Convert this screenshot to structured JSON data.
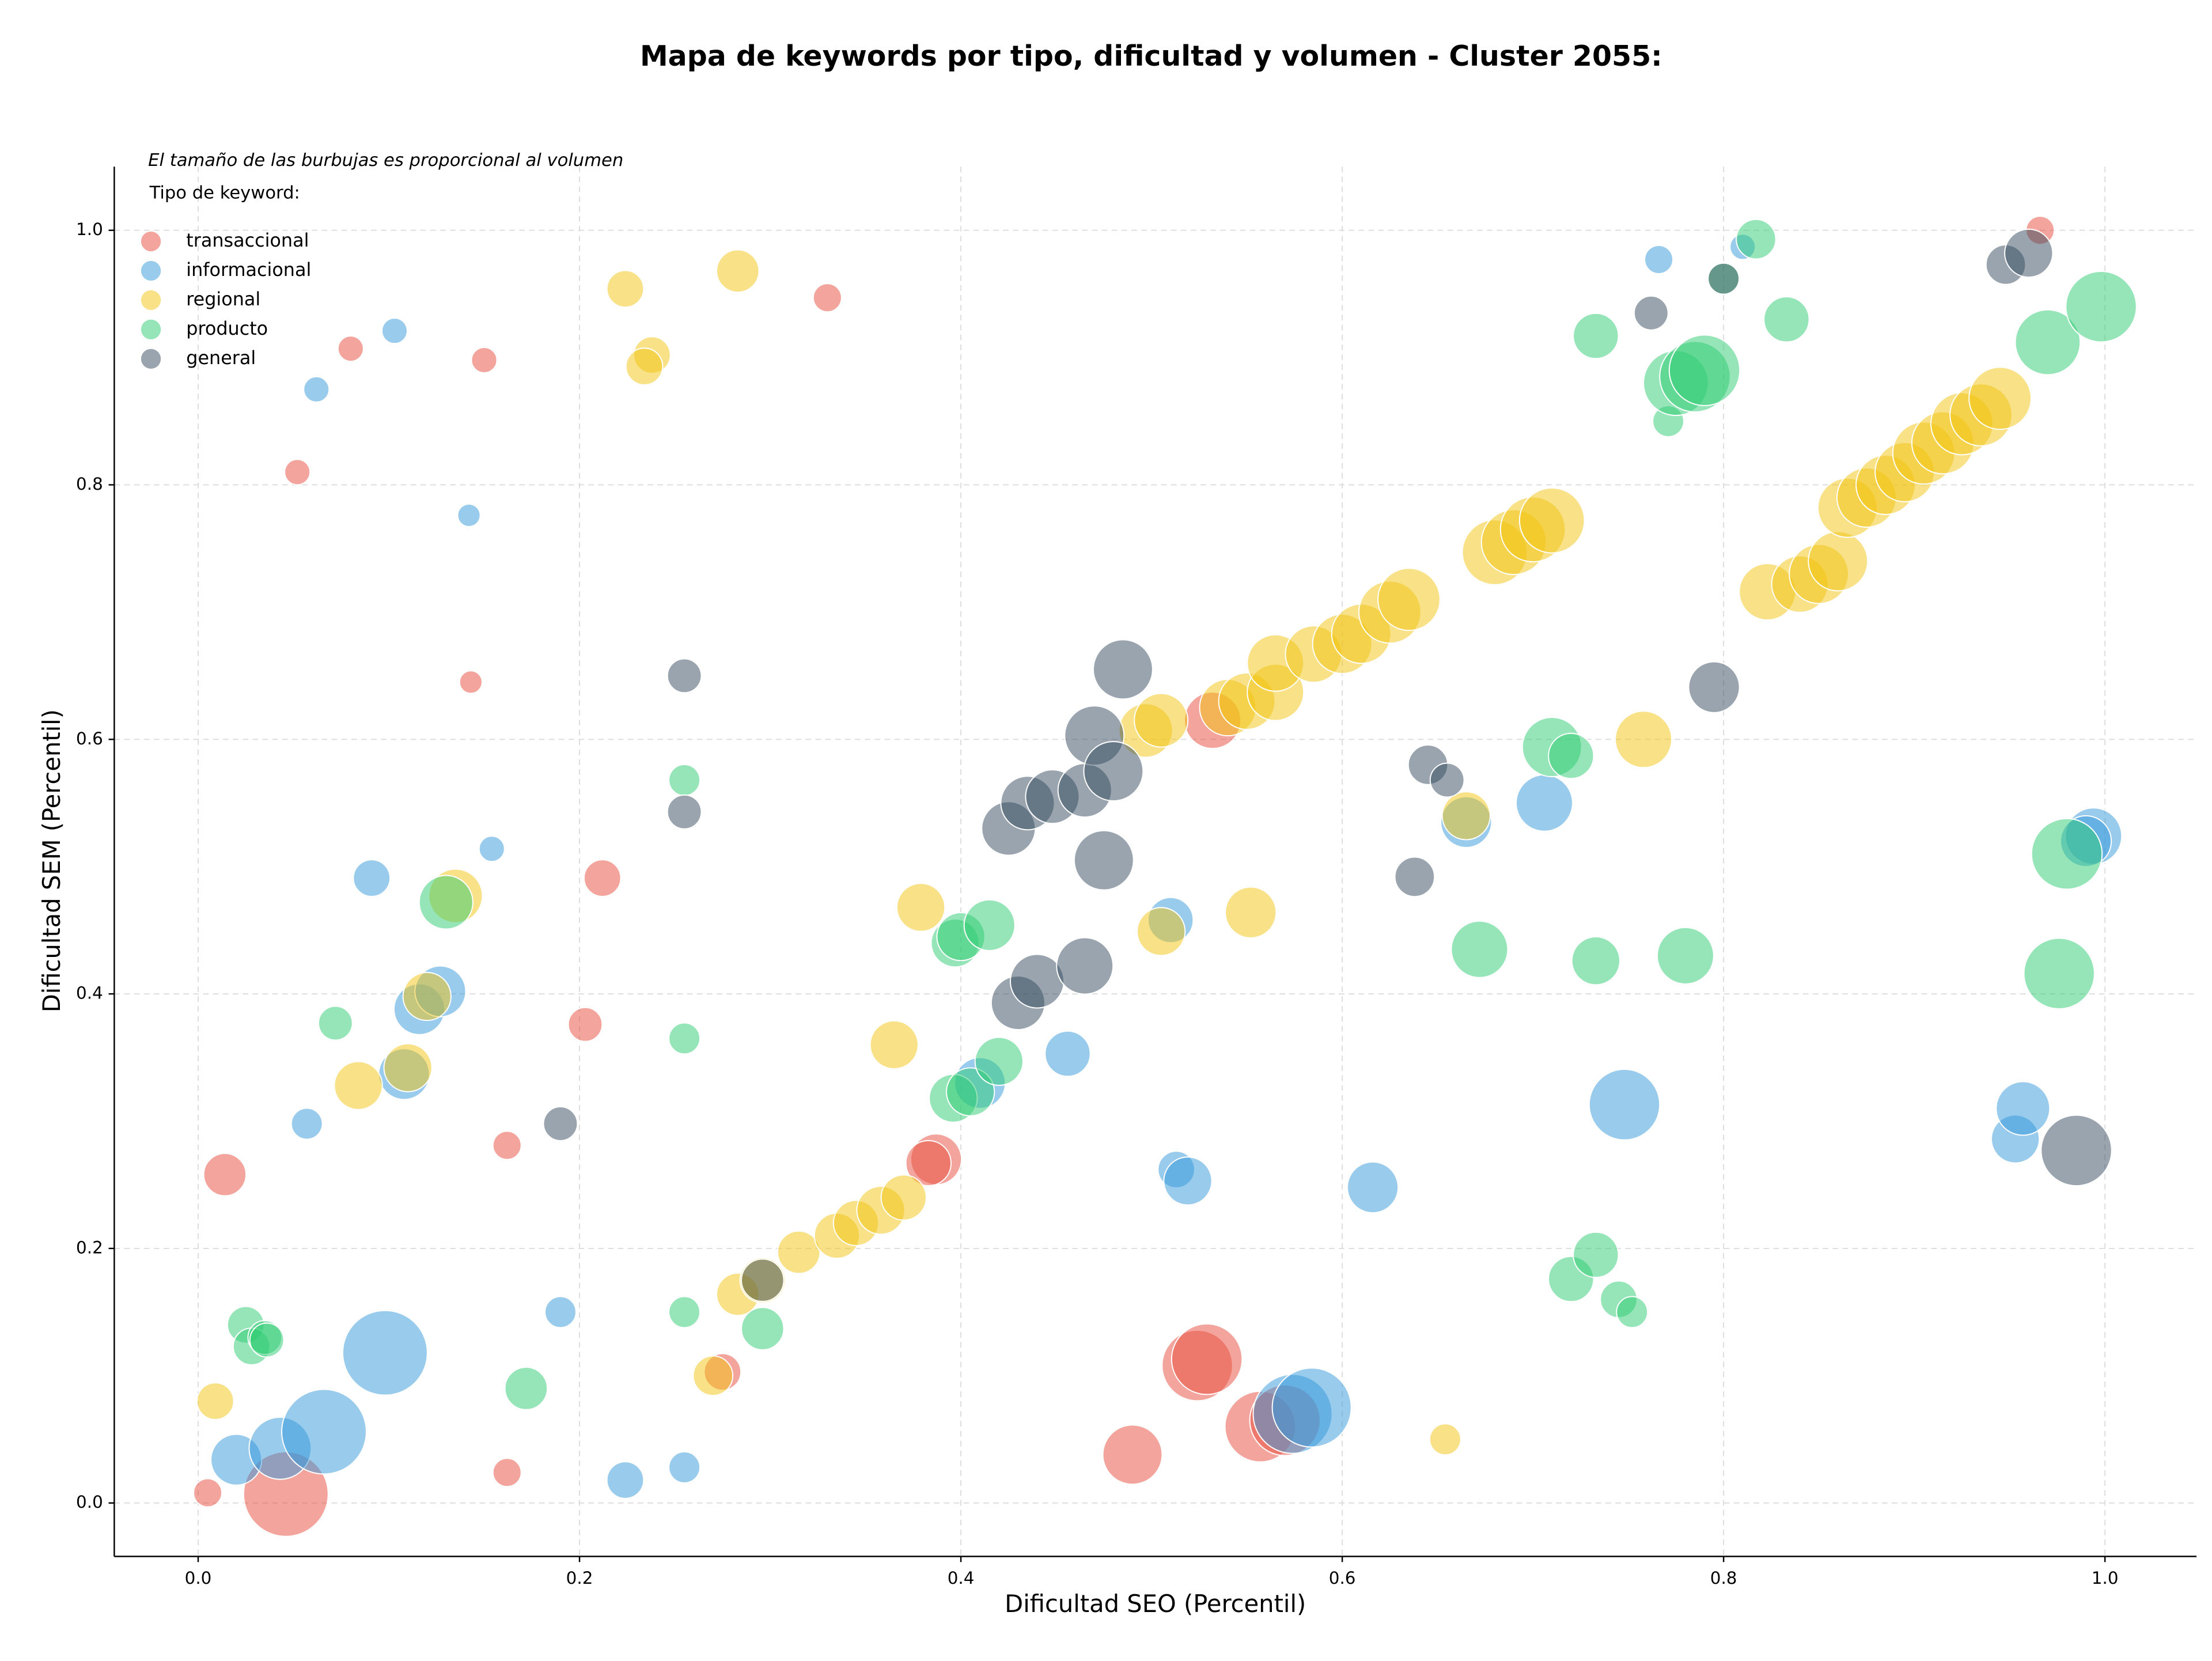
{
  "chart_data": {
    "type": "bubble",
    "title": "Mapa de keywords por tipo, dificultad y volumen - Cluster 2055:",
    "annotation": "El tamaño de las burbujas es proporcional al volumen",
    "legend_title": "Tipo de keyword:",
    "xlabel": "Dificultad SEO (Percentil)",
    "ylabel": "Dificultad SEM (Percentil)",
    "xlim": [
      -0.044,
      1.048
    ],
    "ylim": [
      -0.042,
      1.05
    ],
    "xticks": [
      {
        "value": 0,
        "label": "0.0"
      },
      0.2,
      0.4,
      0.6,
      0.8,
      {
        "value": 1,
        "label": "1.0"
      }
    ],
    "yticks": [
      {
        "value": 0,
        "label": "0.0"
      },
      0.2,
      0.4,
      0.6,
      0.8,
      {
        "value": 1,
        "label": "1.0"
      }
    ],
    "grid": true,
    "legend": "upper left",
    "series": [
      {
        "name": "transaccional",
        "color": "#e74c3c",
        "x": [
          0.005,
          0.046,
          0.014,
          0.052,
          0.08,
          0.15,
          0.143,
          0.162,
          0.162,
          0.203,
          0.212,
          0.33,
          0.275,
          0.387,
          0.383,
          0.49,
          0.524,
          0.529,
          0.557,
          0.57,
          0.532,
          0.966
        ],
        "values": [
          0.008,
          0.007,
          0.258,
          0.81,
          0.907,
          0.898,
          0.645,
          0.281,
          0.024,
          0.376,
          0.491,
          0.947,
          0.103,
          0.27,
          0.267,
          0.038,
          0.108,
          0.113,
          0.06,
          0.065,
          0.615,
          1.0
        ],
        "sizes": [
          10,
          30,
          15,
          9,
          9,
          9,
          8,
          10,
          10,
          12,
          13,
          10,
          13,
          18,
          16,
          21,
          25,
          25,
          25,
          25,
          20,
          10
        ]
      },
      {
        "name": "informacional",
        "color": "#3498db",
        "x": [
          0.062,
          0.103,
          0.142,
          0.154,
          0.091,
          0.057,
          0.108,
          0.116,
          0.127,
          0.098,
          0.02,
          0.043,
          0.066,
          0.19,
          0.224,
          0.255,
          0.41,
          0.456,
          0.51,
          0.513,
          0.519,
          0.574,
          0.584,
          0.616,
          0.665,
          0.706,
          0.748,
          0.766,
          0.81,
          0.953,
          0.957,
          0.994,
          0.99
        ],
        "values": [
          0.875,
          0.921,
          0.776,
          0.514,
          0.491,
          0.298,
          0.337,
          0.388,
          0.402,
          0.118,
          0.034,
          0.043,
          0.056,
          0.15,
          0.018,
          0.028,
          0.33,
          0.353,
          0.458,
          0.262,
          0.253,
          0.07,
          0.075,
          0.248,
          0.535,
          0.55,
          0.313,
          0.977,
          0.987,
          0.286,
          0.31,
          0.524,
          0.52
        ],
        "sizes": [
          9,
          9,
          8,
          9,
          13,
          11,
          18,
          18,
          18,
          30,
          18,
          22,
          30,
          11,
          13,
          11,
          18,
          16,
          16,
          13,
          17,
          28,
          28,
          18,
          18,
          20,
          25,
          10,
          9,
          17,
          19,
          20,
          18
        ]
      },
      {
        "name": "regional",
        "color": "#f1c40f",
        "x": [
          0.009,
          0.084,
          0.11,
          0.12,
          0.135,
          0.224,
          0.238,
          0.234,
          0.283,
          0.27,
          0.283,
          0.296,
          0.379,
          0.365,
          0.505,
          0.552,
          0.665,
          0.758,
          0.654,
          0.315,
          0.335,
          0.345,
          0.358,
          0.37,
          0.497,
          0.505,
          0.54,
          0.55,
          0.565,
          0.565,
          0.585,
          0.6,
          0.61,
          0.625,
          0.635,
          0.68,
          0.69,
          0.7,
          0.71,
          0.823,
          0.84,
          0.85,
          0.86,
          0.865,
          0.875,
          0.885,
          0.895,
          0.905,
          0.915,
          0.925,
          0.935,
          0.945
        ],
        "values": [
          0.08,
          0.328,
          0.342,
          0.398,
          0.477,
          0.954,
          0.902,
          0.893,
          0.968,
          0.1,
          0.164,
          0.175,
          0.468,
          0.36,
          0.449,
          0.464,
          0.54,
          0.6,
          0.05,
          0.197,
          0.21,
          0.22,
          0.23,
          0.24,
          0.607,
          0.615,
          0.625,
          0.63,
          0.637,
          0.66,
          0.667,
          0.675,
          0.683,
          0.7,
          0.71,
          0.747,
          0.755,
          0.765,
          0.772,
          0.716,
          0.722,
          0.73,
          0.74,
          0.782,
          0.79,
          0.8,
          0.81,
          0.825,
          0.833,
          0.848,
          0.855,
          0.868
        ],
        "sizes": [
          13,
          17,
          17,
          17,
          19,
          13,
          13,
          13,
          15,
          14,
          15,
          16,
          17,
          17,
          17,
          18,
          17,
          20,
          11,
          15,
          16,
          16,
          17,
          16,
          19,
          19,
          20,
          20,
          20,
          20,
          20,
          21,
          21,
          22,
          22,
          23,
          23,
          23,
          23,
          20,
          20,
          21,
          21,
          21,
          21,
          21,
          21,
          22,
          22,
          22,
          22,
          22
        ]
      },
      {
        "name": "producto",
        "color": "#2ecc71",
        "x": [
          0.025,
          0.028,
          0.035,
          0.036,
          0.072,
          0.13,
          0.172,
          0.255,
          0.255,
          0.255,
          0.296,
          0.396,
          0.405,
          0.42,
          0.397,
          0.4,
          0.415,
          0.672,
          0.71,
          0.72,
          0.72,
          0.733,
          0.745,
          0.752,
          0.733,
          0.78,
          0.733,
          0.771,
          0.775,
          0.785,
          0.79,
          0.8,
          0.817,
          0.833,
          0.97,
          0.998,
          0.98,
          0.976
        ],
        "values": [
          0.14,
          0.123,
          0.13,
          0.128,
          0.377,
          0.472,
          0.09,
          0.568,
          0.365,
          0.15,
          0.137,
          0.318,
          0.323,
          0.347,
          0.44,
          0.445,
          0.454,
          0.435,
          0.594,
          0.587,
          0.176,
          0.195,
          0.16,
          0.15,
          0.426,
          0.43,
          0.917,
          0.85,
          0.88,
          0.885,
          0.89,
          0.962,
          0.993,
          0.93,
          0.912,
          0.94,
          0.51,
          0.416
        ],
        "sizes": [
          13,
          13,
          12,
          12,
          12,
          19,
          15,
          11,
          11,
          11,
          15,
          17,
          17,
          17,
          17,
          17,
          18,
          20,
          21,
          16,
          16,
          16,
          13,
          11,
          17,
          20,
          16,
          11,
          23,
          25,
          25,
          11,
          14,
          16,
          23,
          25,
          25,
          25
        ]
      },
      {
        "name": "general",
        "color": "#34495e",
        "x": [
          0.19,
          0.255,
          0.255,
          0.296,
          0.425,
          0.43,
          0.44,
          0.435,
          0.448,
          0.465,
          0.47,
          0.48,
          0.475,
          0.485,
          0.465,
          0.638,
          0.645,
          0.655,
          0.762,
          0.8,
          0.795,
          0.948,
          0.96,
          0.985
        ],
        "values": [
          0.298,
          0.65,
          0.543,
          0.175,
          0.53,
          0.393,
          0.41,
          0.55,
          0.555,
          0.56,
          0.603,
          0.575,
          0.505,
          0.655,
          0.422,
          0.492,
          0.58,
          0.568,
          0.935,
          0.962,
          0.641,
          0.973,
          0.982,
          0.277
        ],
        "sizes": [
          12,
          12,
          12,
          15,
          19,
          19,
          19,
          19,
          19,
          19,
          21,
          21,
          21,
          21,
          20,
          14,
          14,
          12,
          12,
          11,
          18,
          14,
          17,
          25
        ]
      }
    ]
  }
}
